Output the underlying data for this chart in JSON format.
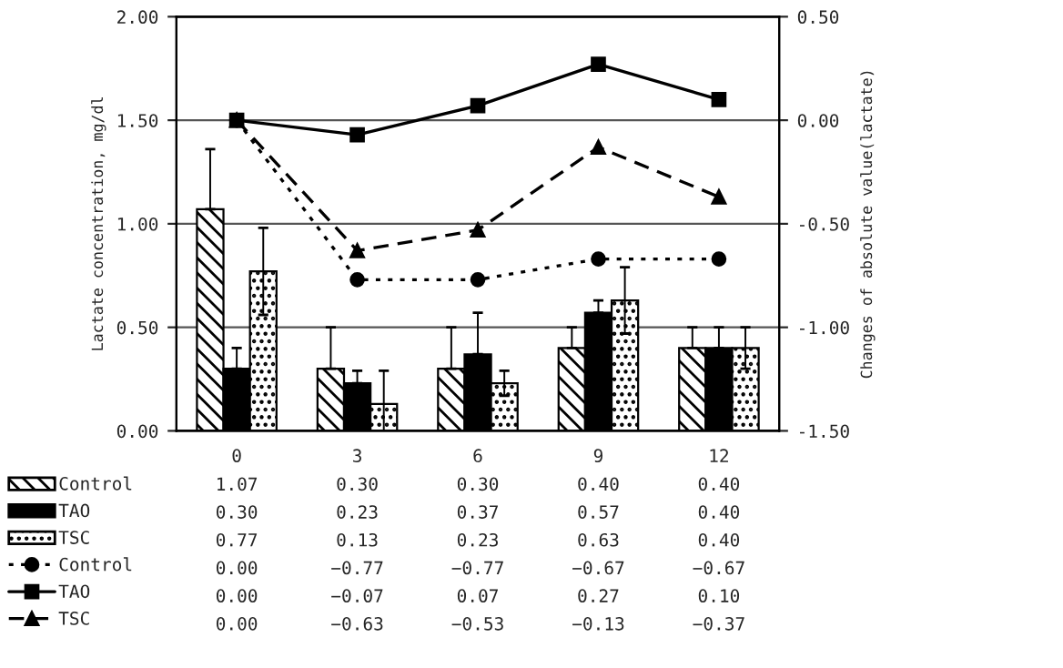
{
  "chart_data": {
    "type": "bar",
    "categories": [
      "0",
      "3",
      "6",
      "9",
      "12"
    ],
    "ylabel": "Lactate concentration, mg/dl",
    "y2label": "Changes of absolute value(lactate)",
    "ylim": [
      0,
      2
    ],
    "yticks": [
      {
        "value": 0,
        "label": "0.00"
      },
      {
        "value": 0.5,
        "label": "0.50"
      },
      {
        "value": 1,
        "label": "1.00"
      },
      {
        "value": 1.5,
        "label": "1.50"
      },
      {
        "value": 2,
        "label": "2.00"
      }
    ],
    "y2lim": [
      -1.5,
      0.5
    ],
    "y2ticks": [
      {
        "value": -1.5,
        "label": "-1.50"
      },
      {
        "value": -1,
        "label": "-1.00"
      },
      {
        "value": -0.5,
        "label": "-0.50"
      },
      {
        "value": 0,
        "label": "0.00"
      },
      {
        "value": 0.5,
        "label": "0.50"
      }
    ],
    "grid": "y",
    "legend": "bottom left",
    "series": [
      {
        "name": "Control",
        "color": "#000000",
        "values": [
          1.07,
          0.3,
          0.3,
          0.4,
          0.4
        ],
        "value_labels": [
          "1.07",
          "0.30",
          "0.30",
          "0.40",
          "0.40"
        ],
        "errors": [
          [
            1.07,
            1.36
          ],
          [
            0.3,
            0.5
          ],
          [
            0.3,
            0.5
          ],
          [
            0.4,
            0.5
          ],
          [
            0.4,
            0.5
          ]
        ]
      },
      {
        "name": "TAO",
        "color": "#000000",
        "values": [
          0.3,
          0.23,
          0.37,
          0.57,
          0.4
        ],
        "value_labels": [
          "0.30",
          "0.23",
          "0.37",
          "0.57",
          "0.40"
        ],
        "errors": [
          [
            0.3,
            0.4
          ],
          [
            0.23,
            0.29
          ],
          [
            0.37,
            0.57
          ],
          [
            0.57,
            0.63
          ],
          [
            0.4,
            0.5
          ]
        ]
      },
      {
        "name": "TSC",
        "color": "#000000",
        "values": [
          0.77,
          0.13,
          0.23,
          0.63,
          0.4
        ],
        "value_labels": [
          "0.77",
          "0.13",
          "0.23",
          "0.63",
          "0.40"
        ],
        "errors": [
          0.21,
          0.16,
          0.06,
          0.16,
          0.1
        ]
      },
      {
        "name": "Control",
        "type": "line",
        "axis": "y2",
        "color": "#000000",
        "marker": "circle",
        "line_style": "dotted",
        "values": [
          0.0,
          -0.77,
          -0.77,
          -0.67,
          -0.67
        ],
        "value_labels": [
          "0.00",
          "−0.77",
          "−0.77",
          "−0.67",
          "−0.67"
        ]
      },
      {
        "name": "TAO",
        "type": "line",
        "axis": "y2",
        "color": "#000000",
        "marker": "square",
        "line_style": "solid",
        "values": [
          0.0,
          -0.07,
          0.07,
          0.27,
          0.1
        ],
        "value_labels": [
          "0.00",
          "−0.07",
          "0.07",
          "0.27",
          "0.10"
        ]
      },
      {
        "name": "TSC",
        "type": "line",
        "axis": "y2",
        "color": "#000000",
        "marker": "triangle",
        "line_style": "dashed",
        "values": [
          0.0,
          -0.63,
          -0.53,
          -0.13,
          -0.37
        ],
        "value_labels": [
          "0.00",
          "−0.63",
          "−0.53",
          "−0.13",
          "−0.37"
        ]
      }
    ]
  }
}
